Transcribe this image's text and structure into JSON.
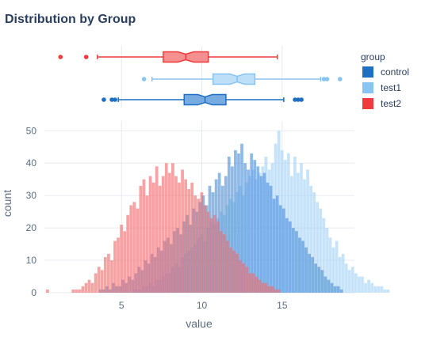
{
  "chart_data": {
    "type": "histogram",
    "title": "Distribution by Group",
    "xlabel": "value",
    "ylabel": "count",
    "xlim": [
      0.2,
      19.5
    ],
    "ylim": [
      0,
      53
    ],
    "x_ticks": [
      5,
      10,
      15
    ],
    "y_ticks": [
      0,
      10,
      20,
      30,
      40,
      50
    ],
    "grid": true,
    "barmode": "overlay",
    "bin_width": 0.2,
    "legend": {
      "title": "group",
      "position": "top-right"
    },
    "marginal": "box",
    "series": [
      {
        "name": "control",
        "color": "#1f6fc2",
        "hist_color": "#4a90d9",
        "box": {
          "q1": 8.9,
          "median": 10.2,
          "q3": 11.5,
          "whisker_low": 4.8,
          "whisker_high": 15.1,
          "outliers": [
            3.9,
            4.4,
            4.6,
            15.8,
            16.0,
            16.2
          ]
        },
        "counts": [
          1,
          1,
          2,
          1,
          3,
          2,
          2,
          4,
          3,
          5,
          4,
          6,
          8,
          7,
          10,
          9,
          12,
          11,
          14,
          13,
          16,
          17,
          15,
          19,
          20,
          18,
          22,
          24,
          21,
          26,
          25,
          28,
          30,
          27,
          33,
          31,
          35,
          37,
          33,
          36,
          42,
          39,
          44,
          43,
          46,
          40,
          38,
          43,
          41,
          39,
          36,
          37,
          34,
          33,
          29,
          30,
          27,
          26,
          23,
          22,
          20,
          19,
          17,
          16,
          14,
          12,
          11,
          9,
          8,
          7,
          5,
          4,
          3,
          2,
          2,
          1
        ]
      },
      {
        "name": "test1",
        "color": "#87c4f2",
        "hist_color": "#a8d4f6",
        "box": {
          "q1": 10.7,
          "median": 12.2,
          "q3": 13.3,
          "whisker_low": 6.9,
          "whisker_high": 17.4,
          "outliers": [
            6.4,
            17.6,
            17.8,
            18.6
          ]
        },
        "counts": [
          1,
          1,
          1,
          2,
          2,
          3,
          2,
          4,
          4,
          5,
          6,
          6,
          8,
          9,
          8,
          11,
          12,
          13,
          14,
          15,
          17,
          18,
          16,
          20,
          22,
          21,
          23,
          25,
          24,
          27,
          29,
          28,
          31,
          33,
          30,
          34,
          36,
          38,
          35,
          37,
          39,
          42,
          38,
          40,
          46,
          50,
          44,
          41,
          43,
          36,
          42,
          37,
          40,
          35,
          38,
          33,
          31,
          28,
          26,
          23,
          20,
          17,
          14,
          16,
          11,
          12,
          9,
          7,
          8,
          6,
          5,
          5,
          3,
          4,
          3,
          2,
          2,
          2,
          1,
          1
        ]
      },
      {
        "name": "test2",
        "color": "#ef3b3b",
        "hist_color": "#f26b6b",
        "box": {
          "q1": 7.6,
          "median": 9.0,
          "q3": 10.4,
          "whisker_low": 3.5,
          "whisker_high": 14.7,
          "outliers": [
            1.2,
            2.8
          ]
        },
        "counts": [
          1,
          0,
          0,
          0,
          0,
          0,
          0,
          0,
          1,
          1,
          1,
          2,
          3,
          4,
          3,
          6,
          8,
          7,
          11,
          12,
          10,
          16,
          17,
          21,
          19,
          24,
          27,
          28,
          26,
          33,
          35,
          30,
          36,
          34,
          39,
          33,
          36,
          40,
          37,
          40,
          36,
          34,
          38,
          35,
          32,
          34,
          30,
          29,
          31,
          27,
          25,
          23,
          24,
          22,
          19,
          18,
          16,
          14,
          13,
          12,
          10,
          9,
          8,
          6,
          6,
          5,
          4,
          3,
          3,
          2,
          2,
          1,
          1
        ]
      }
    ]
  }
}
